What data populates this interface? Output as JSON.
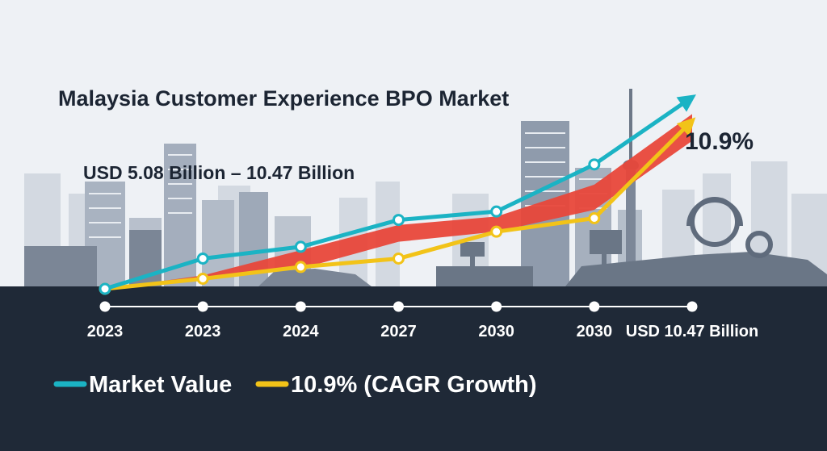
{
  "colors": {
    "background": "#eef1f5",
    "skyline_far": "#c9d0da",
    "skyline_mid": "#aeb7c4",
    "skyline_near": "#5f6b7c",
    "timeline_band": "#1f2937",
    "market_value": "#1bb3c4",
    "cagr_growth": "#f2c318",
    "trend_band": "#e8473a",
    "text_dark": "#1c2533",
    "text_light": "#ffffff"
  },
  "chart_data": {
    "type": "line",
    "title": "Malaysia Customer Experience BPO Market",
    "subtitle": "USD 5.08 Billion  –  10.47 Billion",
    "growth_callout": "10.9%",
    "x_tick_labels": [
      "2023",
      "2023",
      "2024",
      "2027",
      "2030",
      "2030",
      "USD 10.47 Billion"
    ],
    "series": [
      {
        "name": "Market Value",
        "color": "#1bb3c4",
        "marker": "circle-open",
        "arrow_end": true,
        "values": [
          0.0,
          0.18,
          0.25,
          0.41,
          0.46,
          0.74,
          1.14
        ]
      },
      {
        "name": "10.9% (CAGR Growth)",
        "color": "#f2c318",
        "marker": "circle-open",
        "arrow_end": true,
        "values": [
          0.0,
          0.06,
          0.13,
          0.18,
          0.34,
          0.42,
          1.0
        ]
      }
    ],
    "band": {
      "color": "#e8473a",
      "upper": [
        0.0,
        0.08,
        0.23,
        0.38,
        0.43,
        0.62,
        1.04
      ],
      "lower": [
        0.0,
        0.05,
        0.12,
        0.28,
        0.34,
        0.47,
        0.88
      ]
    },
    "legend": {
      "position": "bottom-left",
      "items": [
        {
          "label": "Market Value",
          "color": "#1bb3c4"
        },
        {
          "label": "10.9% (CAGR Growth)",
          "color": "#f2c318"
        }
      ]
    },
    "grid": false,
    "ylim": [
      0,
      1.2
    ]
  }
}
